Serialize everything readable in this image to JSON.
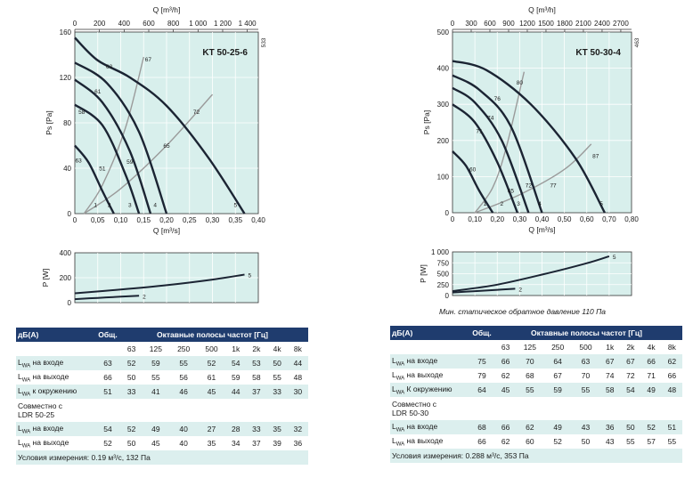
{
  "colors": {
    "plot_bg": "#d8efec",
    "curve": "#1b2433",
    "system": "#9a9a9a",
    "header_bg": "#1f3c6e",
    "row_shade": "#dcefee"
  },
  "chart_data": [
    {
      "type": "line",
      "title": "KT 50-25-6",
      "side_label": "533",
      "xlabel": "Q [m³/s]",
      "x2label": "Q [m³/h]",
      "ylabel": "Ps [Pa]",
      "xlim": [
        0,
        0.4
      ],
      "ylim": [
        0,
        160
      ],
      "x_ticks": [
        "0",
        "0,05",
        "0,10",
        "0,15",
        "0,20",
        "0,25",
        "0,30",
        "0,35",
        "0,40"
      ],
      "x2_ticks": [
        "0",
        "200",
        "400",
        "600",
        "800",
        "1 000",
        "1 200",
        "1 400"
      ],
      "y_ticks": [
        "0",
        "40",
        "80",
        "120",
        "160"
      ],
      "series": [
        {
          "name": "1",
          "x": [
            0.0,
            0.03,
            0.06,
            0.085
          ],
          "y": [
            60,
            45,
            20,
            0
          ]
        },
        {
          "name": "2",
          "x": [
            0.0,
            0.06,
            0.11,
            0.14
          ],
          "y": [
            96,
            78,
            35,
            0
          ]
        },
        {
          "name": "3",
          "x": [
            0.0,
            0.06,
            0.12,
            0.165
          ],
          "y": [
            118,
            98,
            55,
            0
          ]
        },
        {
          "name": "4",
          "x": [
            0.0,
            0.07,
            0.14,
            0.2
          ],
          "y": [
            133,
            115,
            72,
            0
          ]
        },
        {
          "name": "5",
          "x": [
            0.0,
            0.05,
            0.12,
            0.2,
            0.29,
            0.37
          ],
          "y": [
            155,
            135,
            120,
            95,
            50,
            0
          ]
        }
      ],
      "system_curves": [
        {
          "x": [
            0.02,
            0.06,
            0.11,
            0.15
          ],
          "y": [
            0,
            25,
            75,
            138
          ]
        },
        {
          "x": [
            0.02,
            0.1,
            0.2,
            0.3
          ],
          "y": [
            0,
            22,
            60,
            105
          ]
        }
      ],
      "labels": [
        {
          "text": "63",
          "x": 0.075,
          "y": 128
        },
        {
          "text": "61",
          "x": 0.05,
          "y": 106
        },
        {
          "text": "58",
          "x": 0.015,
          "y": 88
        },
        {
          "text": "63",
          "x": 0.008,
          "y": 45
        },
        {
          "text": "51",
          "x": 0.06,
          "y": 38
        },
        {
          "text": "59",
          "x": 0.12,
          "y": 44
        },
        {
          "text": "65",
          "x": 0.2,
          "y": 58
        },
        {
          "text": "67",
          "x": 0.16,
          "y": 134
        },
        {
          "text": "72",
          "x": 0.265,
          "y": 88
        },
        {
          "text": "1",
          "x": 0.045,
          "y": 6
        },
        {
          "text": "2",
          "x": 0.075,
          "y": 6
        },
        {
          "text": "3",
          "x": 0.12,
          "y": 6
        },
        {
          "text": "4",
          "x": 0.175,
          "y": 6
        },
        {
          "text": "5",
          "x": 0.35,
          "y": 6
        }
      ],
      "power": {
        "ylabel": "P [W]",
        "ylim": [
          0,
          400
        ],
        "y_ticks": [
          "0",
          "200",
          "400"
        ],
        "series": [
          {
            "name": "5",
            "x": [
              0.0,
              0.1,
              0.2,
              0.3,
              0.37
            ],
            "y": [
              75,
              105,
              140,
              185,
              225
            ]
          },
          {
            "name": "2",
            "x": [
              0.0,
              0.05,
              0.1,
              0.14
            ],
            "y": [
              28,
              38,
              48,
              55
            ]
          }
        ]
      }
    },
    {
      "type": "line",
      "title": "KT 50-30-4",
      "side_label": "463",
      "xlabel": "Q [m³/s]",
      "x2label": "Q [m³/h]",
      "ylabel": "Ps [Pa]",
      "xlim": [
        0,
        0.8
      ],
      "ylim": [
        0,
        500
      ],
      "x_ticks": [
        "0",
        "0,10",
        "0,20",
        "0,30",
        "0,40",
        "0,50",
        "0,60",
        "0,70",
        "0,80"
      ],
      "x2_ticks": [
        "0",
        "300",
        "600",
        "900",
        "1200",
        "1500",
        "1800",
        "2100",
        "2400",
        "2700"
      ],
      "y_ticks": [
        "0",
        "100",
        "200",
        "300",
        "400",
        "500"
      ],
      "series": [
        {
          "name": "1",
          "x": [
            0.0,
            0.06,
            0.12,
            0.18
          ],
          "y": [
            170,
            130,
            60,
            0
          ]
        },
        {
          "name": "2",
          "x": [
            0.0,
            0.1,
            0.2,
            0.29
          ],
          "y": [
            300,
            250,
            140,
            0
          ]
        },
        {
          "name": "3",
          "x": [
            0.0,
            0.1,
            0.22,
            0.34
          ],
          "y": [
            345,
            305,
            200,
            0
          ]
        },
        {
          "name": "4",
          "x": [
            0.0,
            0.12,
            0.26,
            0.4
          ],
          "y": [
            380,
            340,
            240,
            0
          ]
        },
        {
          "name": "5",
          "x": [
            0.0,
            0.15,
            0.35,
            0.55,
            0.68
          ],
          "y": [
            420,
            395,
            300,
            150,
            0
          ]
        }
      ],
      "system_curves": [
        {
          "x": [
            0.1,
            0.18,
            0.24,
            0.32
          ],
          "y": [
            0,
            70,
            180,
            390
          ]
        },
        {
          "x": [
            0.1,
            0.3,
            0.5,
            0.62
          ],
          "y": [
            0,
            50,
            120,
            190
          ]
        }
      ],
      "labels": [
        {
          "text": "80",
          "x": 0.3,
          "y": 355
        },
        {
          "text": "76",
          "x": 0.2,
          "y": 310
        },
        {
          "text": "74",
          "x": 0.17,
          "y": 258
        },
        {
          "text": "71",
          "x": 0.12,
          "y": 220
        },
        {
          "text": "60",
          "x": 0.09,
          "y": 115
        },
        {
          "text": "65",
          "x": 0.26,
          "y": 55
        },
        {
          "text": "72",
          "x": 0.34,
          "y": 70
        },
        {
          "text": "77",
          "x": 0.45,
          "y": 70
        },
        {
          "text": "87",
          "x": 0.64,
          "y": 152
        },
        {
          "text": "1",
          "x": 0.145,
          "y": 20
        },
        {
          "text": "2",
          "x": 0.22,
          "y": 20
        },
        {
          "text": "3",
          "x": 0.295,
          "y": 20
        },
        {
          "text": "4",
          "x": 0.39,
          "y": 20
        },
        {
          "text": "5",
          "x": 0.665,
          "y": 20
        }
      ],
      "power": {
        "ylabel": "P [W]",
        "ylim": [
          0,
          1000
        ],
        "y_ticks": [
          "0",
          "250",
          "500",
          "750",
          "1 000"
        ],
        "series": [
          {
            "name": "5",
            "x": [
              0.0,
              0.2,
              0.4,
              0.6,
              0.7
            ],
            "y": [
              100,
              250,
              480,
              740,
              900
            ]
          },
          {
            "name": "2",
            "x": [
              0.0,
              0.1,
              0.2,
              0.28
            ],
            "y": [
              70,
              100,
              130,
              155
            ]
          }
        ]
      }
    }
  ],
  "note_right": "Мин. статическое обратное давление 110 Па",
  "tables": [
    {
      "head_db": "дБ(А)",
      "head_total": "Общ.",
      "head_bands": "Октавные полосы частот [Гц]",
      "freqs": [
        "63",
        "125",
        "250",
        "500",
        "1k",
        "2k",
        "4k",
        "8k"
      ],
      "rows": [
        {
          "label": "LWA на входе",
          "total": "63",
          "vals": [
            "52",
            "59",
            "55",
            "52",
            "54",
            "53",
            "50",
            "44"
          ]
        },
        {
          "label": "LWA на выходе",
          "total": "66",
          "vals": [
            "50",
            "55",
            "56",
            "61",
            "59",
            "58",
            "55",
            "48"
          ]
        },
        {
          "label": "LWA к окружению",
          "total": "51",
          "vals": [
            "33",
            "41",
            "46",
            "45",
            "44",
            "37",
            "33",
            "30"
          ]
        }
      ],
      "ldr_line1": "Совместно с",
      "ldr_line2": "LDR 50-25",
      "ldr_rows": [
        {
          "label": "LWA на входе",
          "total": "54",
          "vals": [
            "52",
            "49",
            "40",
            "27",
            "28",
            "33",
            "35",
            "32"
          ]
        },
        {
          "label": "LWA на выходе",
          "total": "52",
          "vals": [
            "50",
            "45",
            "40",
            "35",
            "34",
            "37",
            "39",
            "36"
          ]
        }
      ],
      "conditions": "Условия измерения: 0.19 м³/с, 132 Па"
    },
    {
      "head_db": "дБ(А)",
      "head_total": "Общ.",
      "head_bands": "Октавные полосы частот [Гц]",
      "freqs": [
        "63",
        "125",
        "250",
        "500",
        "1k",
        "2k",
        "4k",
        "8k"
      ],
      "rows": [
        {
          "label": "LWA на входе",
          "total": "75",
          "vals": [
            "66",
            "70",
            "64",
            "63",
            "67",
            "67",
            "66",
            "62"
          ]
        },
        {
          "label": "LWA на выходе",
          "total": "79",
          "vals": [
            "62",
            "68",
            "67",
            "70",
            "74",
            "72",
            "71",
            "66"
          ]
        },
        {
          "label": "LWA К окружению",
          "total": "64",
          "vals": [
            "45",
            "55",
            "59",
            "55",
            "58",
            "54",
            "49",
            "48"
          ]
        }
      ],
      "ldr_line1": "Совместно с",
      "ldr_line2": "LDR 50-30",
      "ldr_rows": [
        {
          "label": "LWA на входе",
          "total": "68",
          "vals": [
            "66",
            "62",
            "49",
            "43",
            "36",
            "50",
            "52",
            "51"
          ]
        },
        {
          "label": "LWA на выходе",
          "total": "66",
          "vals": [
            "62",
            "60",
            "52",
            "50",
            "43",
            "55",
            "57",
            "55"
          ]
        }
      ],
      "conditions": "Условия измерения: 0.288 м³/с, 353 Па"
    }
  ]
}
